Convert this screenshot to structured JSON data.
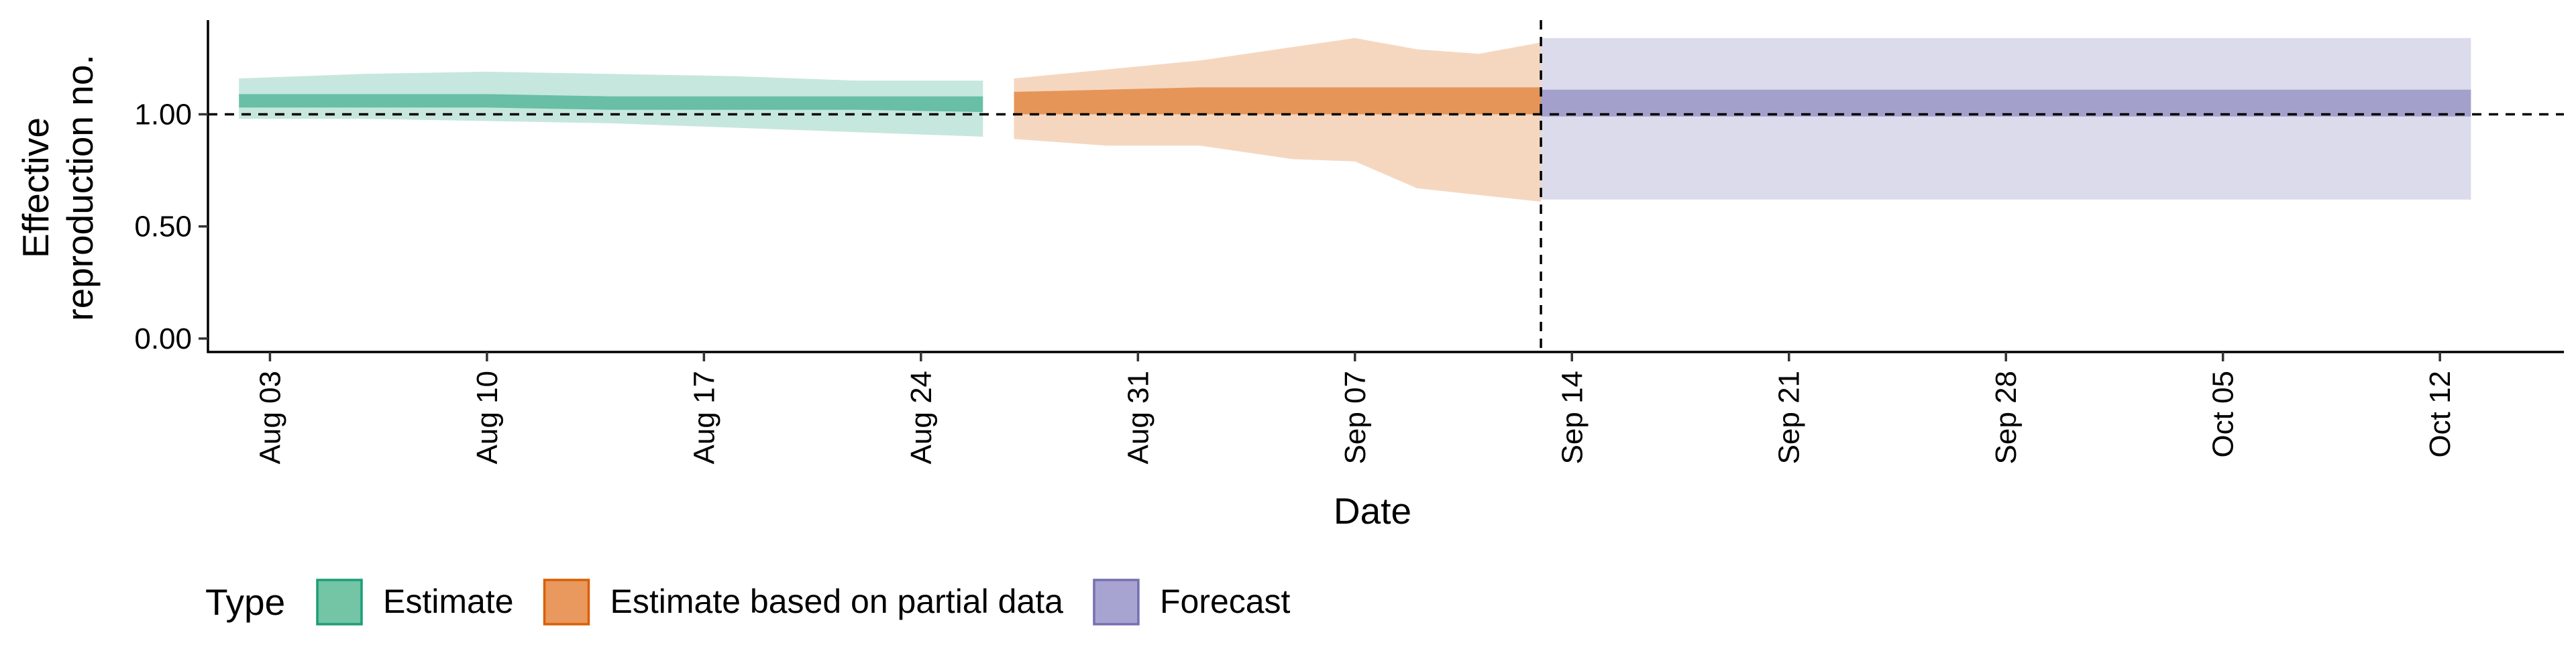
{
  "chart_data": {
    "type": "area",
    "xlabel": "Date",
    "ylabel_lines": [
      "Effective",
      "reproduction no."
    ],
    "x_ticks": [
      "Aug 03",
      "Aug 10",
      "Aug 17",
      "Aug 24",
      "Aug 31",
      "Sep 07",
      "Sep 14",
      "Sep 21",
      "Sep 28",
      "Oct 05",
      "Oct 12"
    ],
    "y_ticks": [
      "0.00",
      "0.50",
      "1.00"
    ],
    "x_range": [
      "2020-08-01",
      "2020-10-16"
    ],
    "ylim": [
      -0.06,
      1.42
    ],
    "reference_hline": 1.0,
    "reference_vline": "2020-09-13",
    "grid": false,
    "legend_position": "bottom-left",
    "legend": {
      "title": "Type",
      "entries": [
        {
          "label": "Estimate",
          "fill": "#74c4a6",
          "stroke": "#1b9e77"
        },
        {
          "label": "Estimate based on partial data",
          "fill": "#e9985e",
          "stroke": "#d95f02"
        },
        {
          "label": "Forecast",
          "fill": "#a8a4d1",
          "stroke": "#7570b3"
        }
      ]
    },
    "series": [
      {
        "type_label": "Estimate",
        "color": "#1b9e77",
        "dates": [
          "2020-08-02",
          "2020-08-06",
          "2020-08-10",
          "2020-08-14",
          "2020-08-18",
          "2020-08-22",
          "2020-08-26"
        ],
        "lower_90": [
          0.98,
          0.98,
          0.97,
          0.96,
          0.94,
          0.92,
          0.9
        ],
        "lower_50": [
          1.03,
          1.03,
          1.03,
          1.02,
          1.02,
          1.02,
          1.01
        ],
        "upper_50": [
          1.09,
          1.09,
          1.09,
          1.08,
          1.08,
          1.08,
          1.08
        ],
        "upper_90": [
          1.16,
          1.18,
          1.19,
          1.18,
          1.17,
          1.15,
          1.15
        ]
      },
      {
        "type_label": "Estimate based on partial data",
        "color": "#d95f02",
        "dates": [
          "2020-08-27",
          "2020-08-30",
          "2020-09-02",
          "2020-09-05",
          "2020-09-07",
          "2020-09-09",
          "2020-09-11",
          "2020-09-13"
        ],
        "lower_90": [
          0.89,
          0.86,
          0.86,
          0.8,
          0.79,
          0.67,
          0.64,
          0.61
        ],
        "lower_50": [
          1.0,
          1.0,
          1.0,
          1.0,
          1.0,
          1.0,
          1.0,
          1.0
        ],
        "upper_50": [
          1.1,
          1.11,
          1.12,
          1.12,
          1.12,
          1.12,
          1.12,
          1.12
        ],
        "upper_90": [
          1.16,
          1.2,
          1.24,
          1.3,
          1.34,
          1.29,
          1.27,
          1.32
        ]
      },
      {
        "type_label": "Forecast",
        "color": "#7570b3",
        "dates": [
          "2020-09-14",
          "2020-10-13"
        ],
        "lower_90": [
          0.62,
          0.62
        ],
        "lower_50": [
          0.99,
          0.99
        ],
        "upper_50": [
          1.11,
          1.11
        ],
        "upper_90": [
          1.34,
          1.34
        ]
      }
    ]
  }
}
